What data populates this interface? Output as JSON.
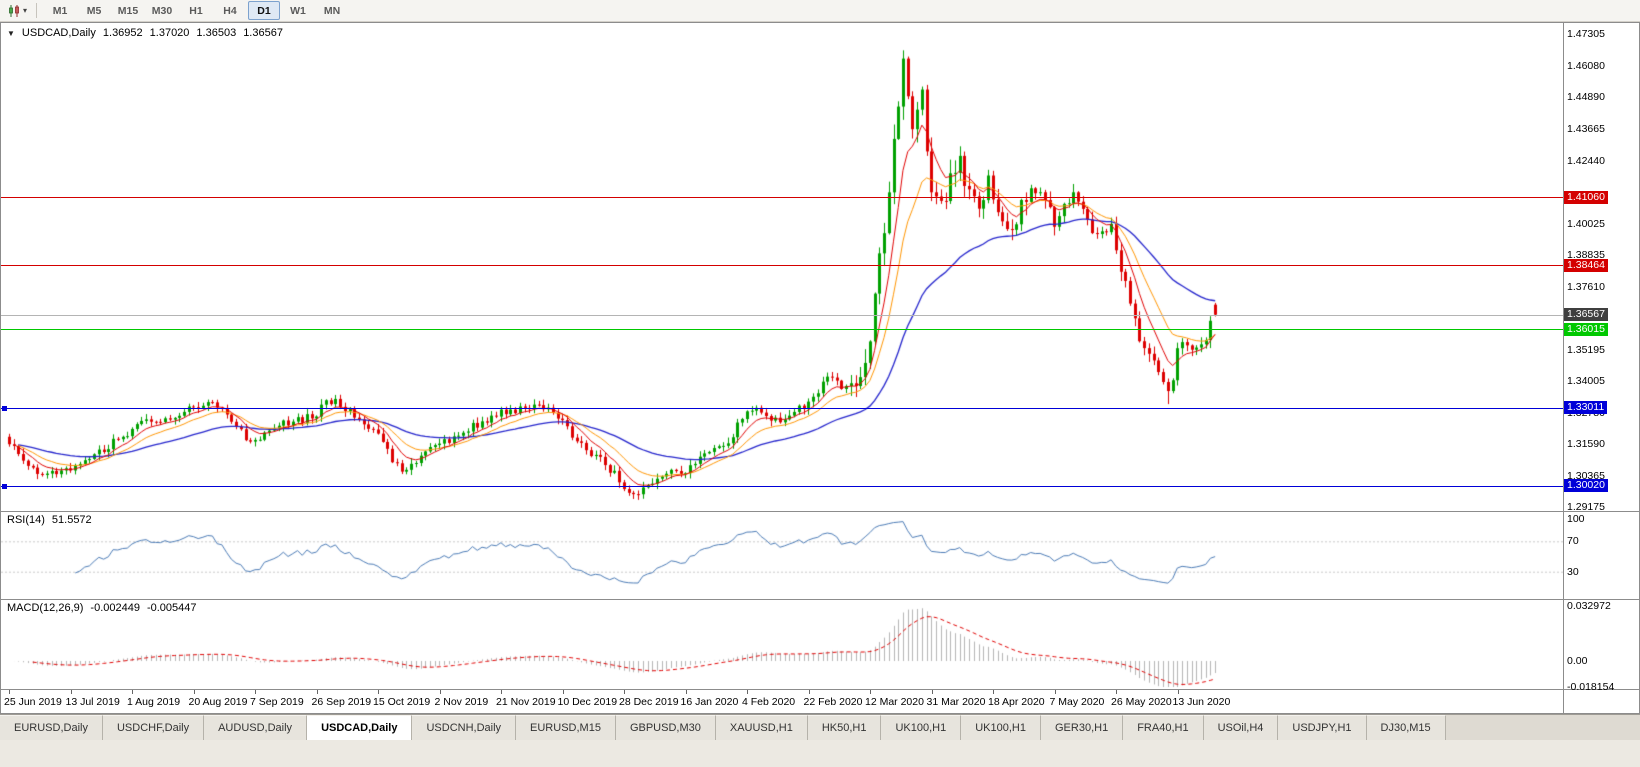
{
  "toolbar": {
    "chart_type_icon": "candlestick-chart-icon",
    "timeframes": [
      "M1",
      "M5",
      "M15",
      "M30",
      "H1",
      "H4",
      "D1",
      "W1",
      "MN"
    ],
    "active_timeframe": "D1"
  },
  "chart": {
    "header": {
      "collapse_icon": "collapse-triangle-icon",
      "symbol_period": "USDCAD,Daily",
      "open": "1.36952",
      "high": "1.37020",
      "low": "1.36503",
      "close": "1.36567"
    },
    "price_axis": [
      {
        "text": "1.47305",
        "price": 1.47305,
        "kind": "tick"
      },
      {
        "text": "1.46080",
        "price": 1.4608,
        "kind": "tick"
      },
      {
        "text": "1.44890",
        "price": 1.4489,
        "kind": "tick"
      },
      {
        "text": "1.43665",
        "price": 1.43665,
        "kind": "tick"
      },
      {
        "text": "1.42440",
        "price": 1.4244,
        "kind": "tick"
      },
      {
        "text": "1.41060",
        "price": 1.4106,
        "kind": "red"
      },
      {
        "text": "1.40025",
        "price": 1.40025,
        "kind": "tick"
      },
      {
        "text": "1.38835",
        "price": 1.38835,
        "kind": "tick"
      },
      {
        "text": "1.38464",
        "price": 1.38464,
        "kind": "red"
      },
      {
        "text": "1.37610",
        "price": 1.3761,
        "kind": "tick"
      },
      {
        "text": "1.36567",
        "price": 1.36567,
        "kind": "current"
      },
      {
        "text": "1.36015",
        "price": 1.36015,
        "kind": "green"
      },
      {
        "text": "1.35195",
        "price": 1.35195,
        "kind": "tick"
      },
      {
        "text": "1.34005",
        "price": 1.34005,
        "kind": "tick"
      },
      {
        "text": "1.33011",
        "price": 1.33011,
        "kind": "blue"
      },
      {
        "text": "1.32780",
        "price": 1.3278,
        "kind": "tick"
      },
      {
        "text": "1.31590",
        "price": 1.3159,
        "kind": "tick"
      },
      {
        "text": "1.30365",
        "price": 1.30365,
        "kind": "tick"
      },
      {
        "text": "1.30020",
        "price": 1.3002,
        "kind": "blue"
      },
      {
        "text": "1.29175",
        "price": 1.29175,
        "kind": "tick"
      }
    ],
    "date_axis": [
      "25 Jun 2019",
      "13 Jul 2019",
      "1 Aug 2019",
      "20 Aug 2019",
      "7 Sep 2019",
      "26 Sep 2019",
      "15 Oct 2019",
      "2 Nov 2019",
      "21 Nov 2019",
      "10 Dec 2019",
      "28 Dec 2019",
      "16 Jan 2020",
      "4 Feb 2020",
      "22 Feb 2020",
      "12 Mar 2020",
      "31 Mar 2020",
      "18 Apr 2020",
      "7 May 2020",
      "26 May 2020",
      "13 Jun 2020"
    ]
  },
  "indicators": {
    "rsi": {
      "name": "RSI(14)",
      "value": "51.5572",
      "axis_labels": [
        {
          "text": "100",
          "v": 100
        },
        {
          "text": "70",
          "v": 70
        },
        {
          "text": "30",
          "v": 30
        }
      ],
      "levels": [
        70,
        30
      ]
    },
    "macd": {
      "name": "MACD(12,26,9)",
      "value_main": "-0.002449",
      "value_signal": "-0.005447",
      "axis_labels": [
        {
          "text": "0.032972",
          "v": 0.032972
        },
        {
          "text": "0.00",
          "v": 0
        },
        {
          "text": "-0.018154",
          "v": -0.018154
        }
      ]
    }
  },
  "tabs": {
    "active_index": 3,
    "items": [
      "EURUSD,Daily",
      "USDCHF,Daily",
      "AUDUSD,Daily",
      "USDCAD,Daily",
      "USDCNH,Daily",
      "EURUSD,M15",
      "GBPUSD,M30",
      "XAUUSD,H1",
      "HK50,H1",
      "UK100,H1",
      "UK100,H1",
      "GER30,H1",
      "FRA40,H1",
      "USOil,H4",
      "USDJPY,H1",
      "DJ30,M15"
    ]
  },
  "colors": {
    "up_candle": "#00a000",
    "down_candle": "#dd0000",
    "ma_fast": "#e00000",
    "ma_mid": "#ff9500",
    "ma_slow": "#2424cc",
    "resistance_line": "#d40000",
    "support_green_line": "#00c800",
    "support_blue_line": "#0000d8",
    "current_price_line": "#b4b4b4",
    "current_price_chip": "#3f3f3f",
    "rsi_line": "#4a7ab5",
    "rsi_levels": "#c8c8c8",
    "macd_histogram": "#b4b4b4",
    "macd_signal": "#e00000",
    "axis_text": "#000000"
  },
  "chart_data": {
    "type": "candlestick",
    "symbol": "USDCAD",
    "timeframe": "Daily",
    "title": "USDCAD,Daily",
    "visible_date_range": [
      "25 Jun 2019",
      "26 Jun 2020"
    ],
    "price_axis_range": [
      1.29175,
      1.47305
    ],
    "last_ohlc": {
      "open": 1.36952,
      "high": 1.3702,
      "low": 1.36503,
      "close": 1.36567
    },
    "peak_high": 1.4668,
    "june_low": 1.3315,
    "december_low": 1.2952,
    "horizontal_lines": [
      {
        "price": 1.4106,
        "color": "red"
      },
      {
        "price": 1.38464,
        "color": "red"
      },
      {
        "price": 1.36015,
        "color": "green"
      },
      {
        "price": 1.33011,
        "color": "blue"
      },
      {
        "price": 1.3002,
        "color": "blue"
      }
    ],
    "moving_averages": [
      {
        "period": 7,
        "color": "red"
      },
      {
        "period": 14,
        "color": "orange"
      },
      {
        "period": 40,
        "color": "blue"
      }
    ],
    "indicators": [
      {
        "name": "RSI",
        "period": 14,
        "current": 51.5572,
        "levels": [
          30,
          70
        ],
        "axis": [
          100,
          70,
          30
        ]
      },
      {
        "name": "MACD",
        "fast": 12,
        "slow": 26,
        "signal": 9,
        "current_macd": -0.002449,
        "current_signal": -0.005447,
        "axis_max": 0.032972,
        "axis_min": -0.018154
      }
    ],
    "num_candles": 256,
    "price_keyframes": [
      [
        0,
        1.317
      ],
      [
        3,
        1.31
      ],
      [
        6,
        1.306
      ],
      [
        10,
        1.3045
      ],
      [
        13,
        1.306
      ],
      [
        16,
        1.311
      ],
      [
        20,
        1.314
      ],
      [
        24,
        1.3195
      ],
      [
        26,
        1.3215
      ],
      [
        29,
        1.3245
      ],
      [
        33,
        1.3265
      ],
      [
        37,
        1.329
      ],
      [
        39,
        1.33
      ],
      [
        42,
        1.332
      ],
      [
        45,
        1.329
      ],
      [
        48,
        1.323
      ],
      [
        51,
        1.317
      ],
      [
        55,
        1.321
      ],
      [
        58,
        1.324
      ],
      [
        62,
        1.3255
      ],
      [
        65,
        1.328
      ],
      [
        67,
        1.332
      ],
      [
        69,
        1.333
      ],
      [
        72,
        1.329
      ],
      [
        75,
        1.324
      ],
      [
        78,
        1.32
      ],
      [
        80,
        1.313
      ],
      [
        83,
        1.306
      ],
      [
        86,
        1.309
      ],
      [
        89,
        1.314
      ],
      [
        91,
        1.316
      ],
      [
        95,
        1.32
      ],
      [
        99,
        1.324
      ],
      [
        104,
        1.328
      ],
      [
        108,
        1.33
      ],
      [
        112,
        1.331
      ],
      [
        117,
        1.325
      ],
      [
        120,
        1.317
      ],
      [
        123,
        1.313
      ],
      [
        126,
        1.309
      ],
      [
        130,
        1.3
      ],
      [
        132,
        1.297
      ],
      [
        135,
        1.2995
      ],
      [
        138,
        1.304
      ],
      [
        141,
        1.306
      ],
      [
        143,
        1.306
      ],
      [
        146,
        1.31
      ],
      [
        149,
        1.314
      ],
      [
        152,
        1.3175
      ],
      [
        156,
        1.329
      ],
      [
        159,
        1.329
      ],
      [
        162,
        1.3255
      ],
      [
        165,
        1.327
      ],
      [
        169,
        1.332
      ],
      [
        172,
        1.339
      ],
      [
        174,
        1.342
      ],
      [
        176,
        1.337
      ],
      [
        178,
        1.339
      ],
      [
        180,
        1.342
      ],
      [
        182,
        1.358
      ],
      [
        184,
        1.388
      ],
      [
        186,
        1.41
      ],
      [
        188,
        1.448
      ],
      [
        189,
        1.463
      ],
      [
        191,
        1.44
      ],
      [
        193,
        1.448
      ],
      [
        195,
        1.415
      ],
      [
        197,
        1.408
      ],
      [
        199,
        1.418
      ],
      [
        201,
        1.423
      ],
      [
        203,
        1.412
      ],
      [
        205,
        1.406
      ],
      [
        207,
        1.416
      ],
      [
        208,
        1.412
      ],
      [
        210,
        1.404
      ],
      [
        212,
        1.399
      ],
      [
        214,
        1.409
      ],
      [
        216,
        1.415
      ],
      [
        218,
        1.41
      ],
      [
        220,
        1.405
      ],
      [
        221,
        1.398
      ],
      [
        223,
        1.408
      ],
      [
        225,
        1.413
      ],
      [
        227,
        1.405
      ],
      [
        229,
        1.399
      ],
      [
        231,
        1.395
      ],
      [
        233,
        1.398
      ],
      [
        234,
        1.39
      ],
      [
        236,
        1.376
      ],
      [
        238,
        1.362
      ],
      [
        240,
        1.354
      ],
      [
        242,
        1.348
      ],
      [
        244,
        1.342
      ],
      [
        245,
        1.337
      ],
      [
        246,
        1.342
      ],
      [
        247,
        1.353
      ],
      [
        249,
        1.3555
      ],
      [
        251,
        1.352
      ],
      [
        253,
        1.358
      ],
      [
        255,
        1.3655
      ]
    ]
  }
}
